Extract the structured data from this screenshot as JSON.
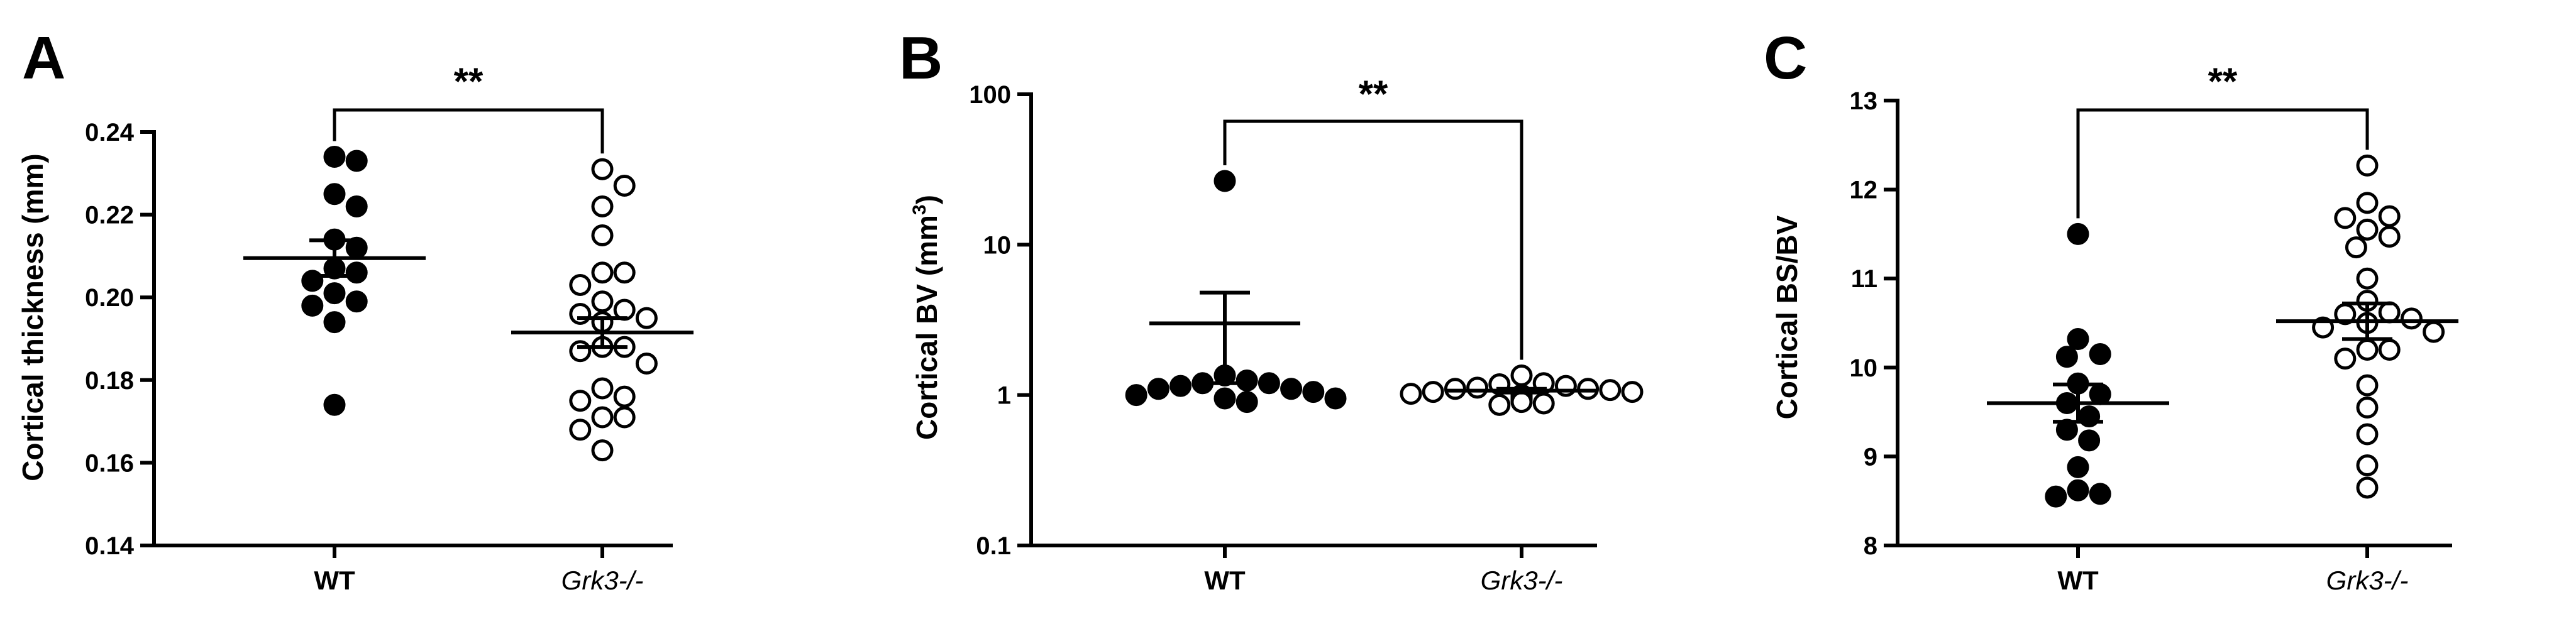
{
  "chart_data": [
    {
      "panel": "A",
      "type": "scatter",
      "categories": [
        "WT",
        "Grk3-/-"
      ],
      "ylabel": "Cortical thickness (mm)",
      "yscale": "linear",
      "ylim": [
        0.14,
        0.24
      ],
      "yticks": [
        0.14,
        0.16,
        0.18,
        0.2,
        0.22,
        0.24
      ],
      "ytick_labels": [
        "0.14",
        "0.16",
        "0.18",
        "0.20",
        "0.22",
        "0.24"
      ],
      "significance": "**",
      "series": [
        {
          "category": "WT",
          "marker": "filled",
          "values": [
            0.234,
            0.233,
            0.225,
            0.222,
            0.214,
            0.212,
            0.207,
            0.206,
            0.204,
            0.201,
            0.199,
            0.198,
            0.194,
            0.174
          ],
          "mean": 0.2095,
          "sem": 0.0043
        },
        {
          "category": "Grk3-/-",
          "marker": "open",
          "values": [
            0.231,
            0.227,
            0.222,
            0.215,
            0.206,
            0.206,
            0.203,
            0.199,
            0.197,
            0.196,
            0.195,
            0.194,
            0.188,
            0.188,
            0.187,
            0.184,
            0.178,
            0.176,
            0.175,
            0.171,
            0.171,
            0.168,
            0.163
          ],
          "mean": 0.1915,
          "sem": 0.0035
        }
      ]
    },
    {
      "panel": "B",
      "type": "scatter",
      "categories": [
        "WT",
        "Grk3-/-"
      ],
      "ylabel": "Cortical BV (mm",
      "ylabel_sup": "3",
      "ylabel_end": ")",
      "yscale": "log",
      "ylim": [
        0.1,
        100
      ],
      "yticks": [
        0.1,
        1,
        10,
        100
      ],
      "ytick_labels": [
        "0.1",
        "1",
        "10",
        "100"
      ],
      "significance": "**",
      "series": [
        {
          "category": "WT",
          "marker": "filled",
          "values": [
            26.5,
            1.35,
            1.25,
            1.2,
            1.2,
            1.15,
            1.1,
            1.1,
            1.05,
            1.0,
            0.95,
            0.95,
            0.9
          ],
          "mean": 3.0,
          "sem": 1.8
        },
        {
          "category": "Grk3-/-",
          "marker": "open",
          "values": [
            1.35,
            1.2,
            1.18,
            1.15,
            1.12,
            1.1,
            1.1,
            1.08,
            1.05,
            1.05,
            1.02,
            1.0,
            1.0,
            0.98,
            0.98,
            0.97,
            0.96,
            0.95,
            0.93,
            0.92,
            0.9,
            0.88,
            0.86
          ],
          "mean": 1.07,
          "sem": 0.03
        }
      ]
    },
    {
      "panel": "C",
      "type": "scatter",
      "categories": [
        "WT",
        "Grk3-/-"
      ],
      "ylabel": "Cortical BS/BV",
      "yscale": "linear",
      "ylim": [
        8,
        13
      ],
      "yticks": [
        8,
        9,
        10,
        11,
        12,
        13
      ],
      "ytick_labels": [
        "8",
        "9",
        "10",
        "11",
        "12",
        "13"
      ],
      "significance": "**",
      "series": [
        {
          "category": "WT",
          "marker": "filled",
          "values": [
            11.5,
            10.32,
            10.15,
            10.12,
            9.82,
            9.7,
            9.6,
            9.45,
            9.3,
            9.18,
            8.88,
            8.62,
            8.58,
            8.55
          ],
          "mean": 9.6,
          "sem": 0.21
        },
        {
          "category": "Grk3-/-",
          "marker": "open",
          "values": [
            12.27,
            11.85,
            11.7,
            11.68,
            11.55,
            11.47,
            11.35,
            11.0,
            10.75,
            10.62,
            10.6,
            10.55,
            10.5,
            10.45,
            10.4,
            10.2,
            10.2,
            10.1,
            9.8,
            9.55,
            9.25,
            8.9,
            8.65
          ],
          "mean": 10.52,
          "sem": 0.2
        }
      ]
    }
  ]
}
